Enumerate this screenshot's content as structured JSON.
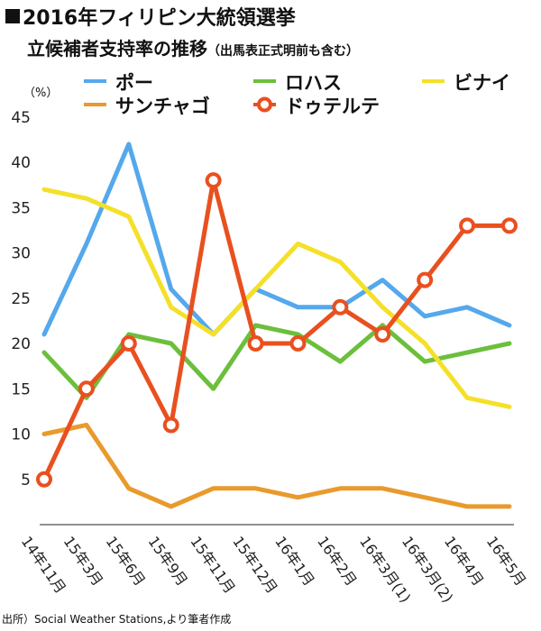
{
  "chart_data": {
    "type": "line",
    "title": "2016年フィリピン大統領選挙",
    "subtitle": "立候補者支持率の推移",
    "subtitle_note": "（出馬表正式明前も含む）",
    "ylabel": "（%）",
    "ylim": [
      0,
      45
    ],
    "yticks": [
      5,
      10,
      15,
      20,
      25,
      30,
      35,
      40,
      45
    ],
    "categories": [
      "14年11月",
      "15年3月",
      "15年6月",
      "15年9月",
      "15年11月",
      "15年12月",
      "16年1月",
      "16年2月",
      "16年3月(1)",
      "16年3月(2)",
      "16年4月",
      "16年5月"
    ],
    "series": [
      {
        "name": "ポー",
        "color": "#55a8ec",
        "markers": false,
        "values": [
          21,
          31,
          42,
          26,
          21,
          26,
          24,
          24,
          27,
          23,
          24,
          22
        ]
      },
      {
        "name": "サンチャゴ",
        "color": "#e99a2c",
        "markers": false,
        "values": [
          10,
          11,
          4,
          2,
          4,
          4,
          3,
          4,
          4,
          3,
          2,
          2
        ]
      },
      {
        "name": "ロハス",
        "color": "#6cbf3c",
        "markers": false,
        "values": [
          19,
          14,
          21,
          20,
          15,
          22,
          21,
          18,
          22,
          18,
          19,
          20
        ]
      },
      {
        "name": "ドゥテルテ",
        "color": "#e9501f",
        "markers": true,
        "values": [
          5,
          15,
          20,
          11,
          38,
          20,
          20,
          24,
          21,
          27,
          33,
          33
        ]
      },
      {
        "name": "ビナイ",
        "color": "#f4e029",
        "markers": false,
        "values": [
          37,
          36,
          34,
          24,
          21,
          26,
          31,
          29,
          24,
          20,
          14,
          13
        ]
      }
    ],
    "legend_location": "top",
    "grid": false
  },
  "source_text": "出所）Social Weather Stations,より筆者作成"
}
